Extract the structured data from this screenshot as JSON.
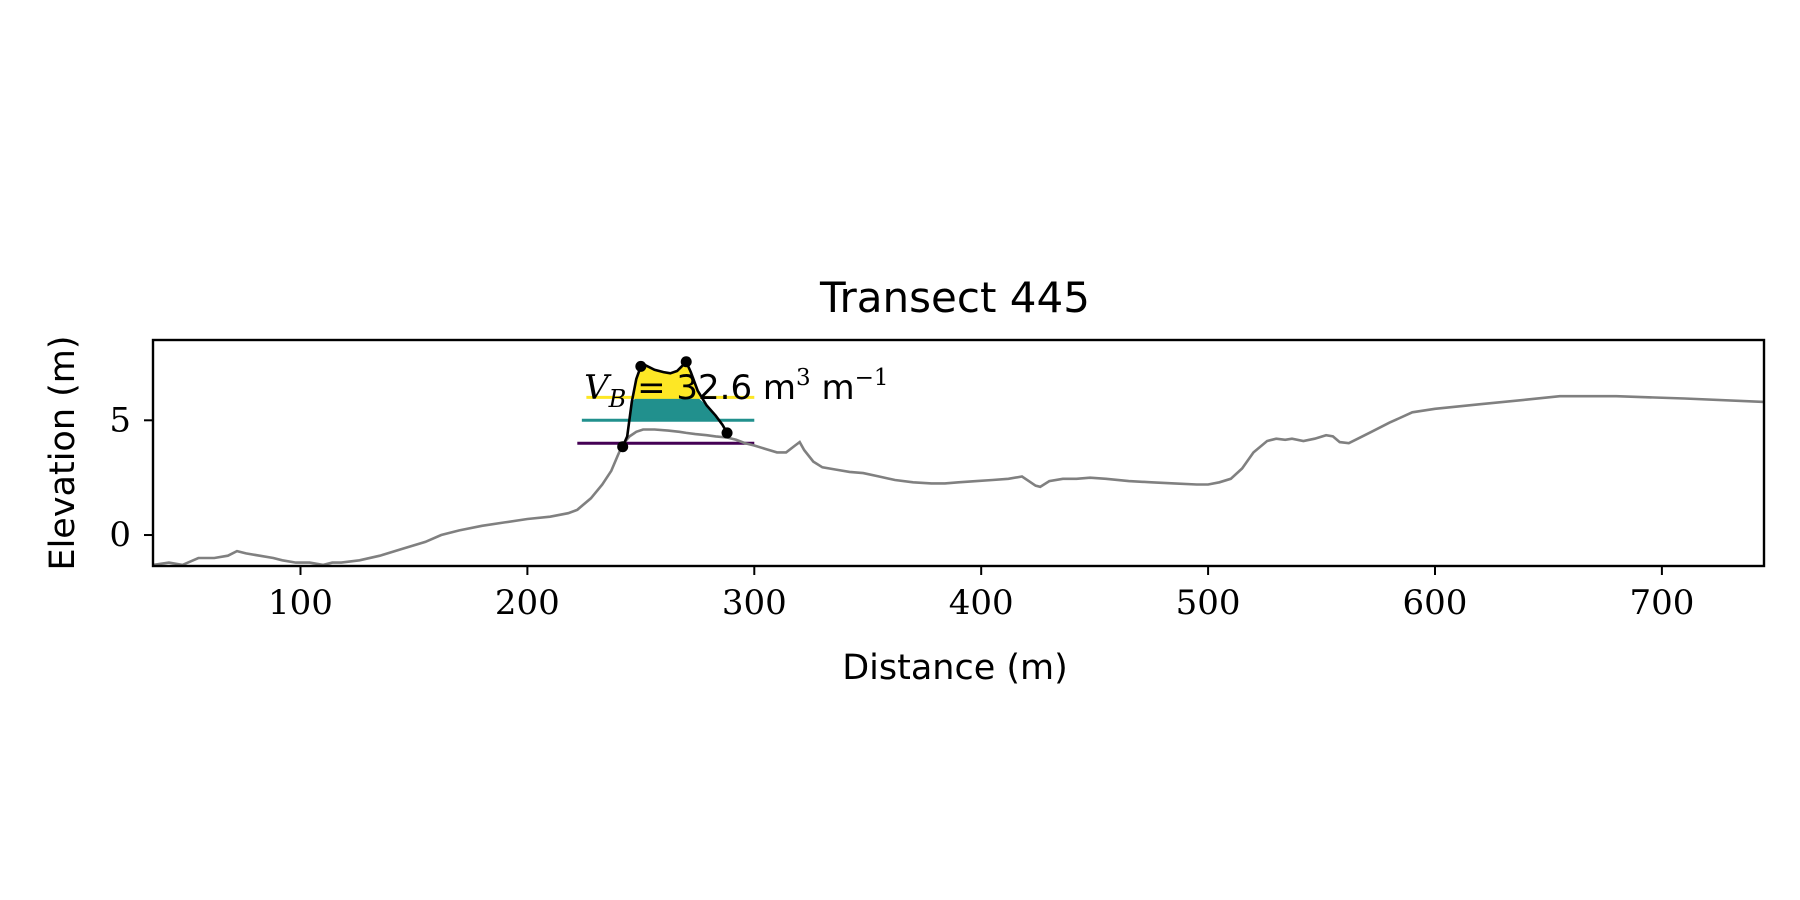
{
  "chart_data": {
    "type": "line",
    "title": "Transect 445",
    "xlabel": "Distance (m)",
    "ylabel": "Elevation (m)",
    "xlim": [
      35,
      745
    ],
    "ylim": [
      -1.35,
      8.5
    ],
    "xticks": [
      100,
      200,
      300,
      400,
      500,
      600,
      700
    ],
    "yticks": [
      0,
      5
    ],
    "grid": false,
    "profile": {
      "color": "#808080",
      "x": [
        35,
        42,
        48,
        55,
        62,
        68,
        72,
        76,
        82,
        88,
        92,
        98,
        104,
        110,
        114,
        118,
        126,
        135,
        145,
        155,
        162,
        170,
        180,
        190,
        200,
        210,
        218,
        222,
        228,
        233,
        237,
        240,
        242,
        245,
        248,
        251,
        256,
        262,
        267,
        270,
        274,
        279,
        283,
        288,
        292,
        296,
        300,
        305,
        310,
        314,
        318,
        320,
        322,
        326,
        330,
        336,
        342,
        348,
        355,
        362,
        370,
        378,
        384,
        390,
        398,
        405,
        412,
        418,
        421,
        424,
        426,
        430,
        436,
        442,
        448,
        455,
        465,
        475,
        485,
        495,
        500,
        505,
        510,
        515,
        520,
        526,
        530,
        534,
        537,
        542,
        547,
        552,
        555,
        558,
        562,
        566,
        572,
        580,
        590,
        600,
        620,
        640,
        655,
        680,
        710,
        745
      ],
      "y": [
        -1.3,
        -1.2,
        -1.3,
        -1.0,
        -1.0,
        -0.9,
        -0.7,
        -0.8,
        -0.9,
        -1.0,
        -1.1,
        -1.2,
        -1.2,
        -1.3,
        -1.2,
        -1.2,
        -1.1,
        -0.9,
        -0.6,
        -0.3,
        0.0,
        0.2,
        0.4,
        0.55,
        0.7,
        0.8,
        0.95,
        1.1,
        1.6,
        2.2,
        2.8,
        3.5,
        3.95,
        4.3,
        4.5,
        4.6,
        4.6,
        4.55,
        4.5,
        4.45,
        4.4,
        4.35,
        4.3,
        4.25,
        4.15,
        4.0,
        3.9,
        3.75,
        3.6,
        3.6,
        3.9,
        4.05,
        3.7,
        3.2,
        2.95,
        2.85,
        2.75,
        2.7,
        2.55,
        2.4,
        2.3,
        2.25,
        2.25,
        2.3,
        2.35,
        2.4,
        2.45,
        2.55,
        2.35,
        2.15,
        2.1,
        2.35,
        2.45,
        2.45,
        2.5,
        2.45,
        2.35,
        2.3,
        2.25,
        2.2,
        2.2,
        2.3,
        2.45,
        2.9,
        3.6,
        4.1,
        4.2,
        4.15,
        4.2,
        4.1,
        4.2,
        4.35,
        4.3,
        4.05,
        4.0,
        4.2,
        4.5,
        4.9,
        5.35,
        5.5,
        5.7,
        5.9,
        6.05,
        6.05,
        5.95,
        5.8
      ]
    },
    "dune": {
      "color": "#000000",
      "x": [
        242,
        244,
        246,
        248,
        250,
        252,
        256,
        260,
        263,
        266,
        268,
        270,
        272,
        275,
        279,
        283,
        286,
        288
      ],
      "y": [
        3.85,
        4.3,
        5.8,
        6.8,
        7.35,
        7.4,
        7.2,
        7.1,
        7.05,
        7.15,
        7.35,
        7.55,
        7.1,
        6.3,
        5.65,
        5.2,
        4.8,
        4.45
      ],
      "markers": [
        {
          "x": 242,
          "y": 3.85
        },
        {
          "x": 250,
          "y": 7.35
        },
        {
          "x": 270,
          "y": 7.55
        },
        {
          "x": 288,
          "y": 4.45
        }
      ]
    },
    "volume_bands": [
      {
        "color": "#fde725",
        "ymin": 6.0,
        "ymax": 7.6,
        "line_xmin": 226
      },
      {
        "color": "#21908d",
        "ymin": 5.0,
        "ymax": 6.0,
        "line_xmin": 224
      },
      {
        "color": "#440154",
        "ymin": 4.0,
        "ymax": 5.0,
        "line_xmin": 222
      }
    ],
    "band_line_xmax": 300,
    "annotation": {
      "symbol": "V",
      "subscript": "B",
      "value": "32.6",
      "unit_base": "m",
      "unit_exp": "3",
      "unit_base2": "m",
      "unit_exp2": "−1",
      "x": 225,
      "y": 6.5
    }
  }
}
